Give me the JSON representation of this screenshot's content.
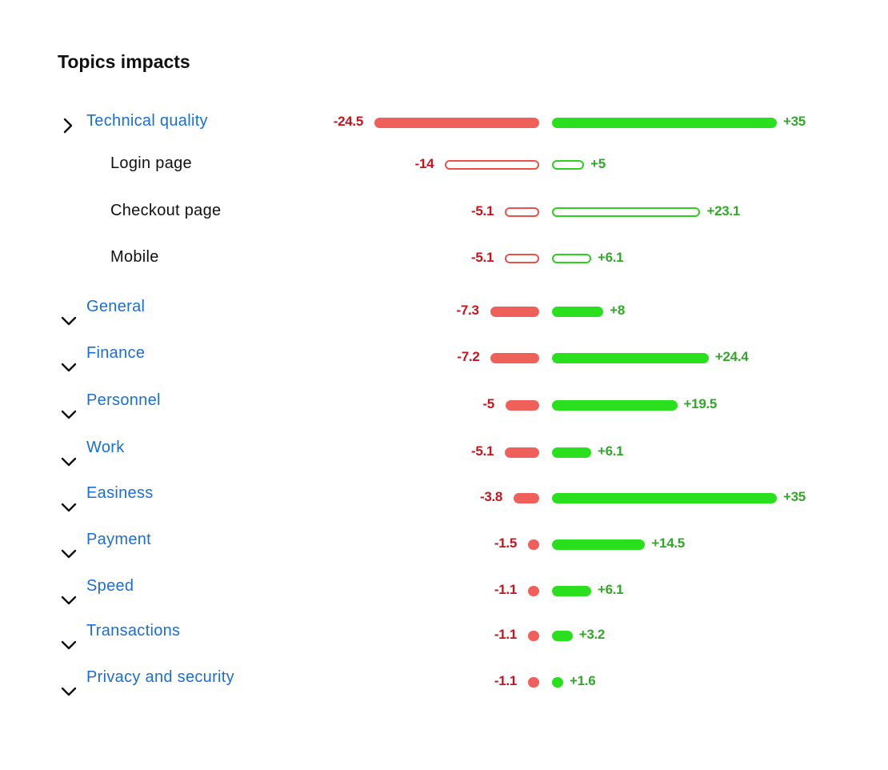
{
  "title": "Topics impacts",
  "colors": {
    "negative_bar": "#f0605a",
    "positive_bar": "#2adf1e",
    "negative_text": "#c8141c",
    "positive_text": "#32a82a",
    "topic_link": "#1a6ed8"
  },
  "chart_data": {
    "type": "bar",
    "orientation": "horizontal-diverging",
    "rows": [
      {
        "label": "Technical quality",
        "level": 0,
        "state": "collapsed-chevron-right",
        "neg": -24.5,
        "pos": 35,
        "neg_label": "-24.5",
        "pos_label": "+35"
      },
      {
        "label": "Login page",
        "level": 1,
        "neg": -14,
        "pos": 5,
        "neg_label": "-14",
        "pos_label": "+5"
      },
      {
        "label": "Checkout page",
        "level": 1,
        "neg": -5.1,
        "pos": 23.1,
        "neg_label": "-5.1",
        "pos_label": "+23.1"
      },
      {
        "label": "Mobile",
        "level": 1,
        "neg": -5.1,
        "pos": 6.1,
        "neg_label": "-5.1",
        "pos_label": "+6.1"
      },
      {
        "label": "General",
        "level": 0,
        "state": "chevron-down",
        "neg": -7.3,
        "pos": 8,
        "neg_label": "-7.3",
        "pos_label": "+8"
      },
      {
        "label": "Finance",
        "level": 0,
        "state": "chevron-down",
        "neg": -7.2,
        "pos": 24.4,
        "neg_label": "-7.2",
        "pos_label": "+24.4"
      },
      {
        "label": "Personnel",
        "level": 0,
        "state": "chevron-down",
        "neg": -5,
        "pos": 19.5,
        "neg_label": "-5",
        "pos_label": "+19.5"
      },
      {
        "label": "Work",
        "level": 0,
        "state": "chevron-down",
        "neg": -5.1,
        "pos": 6.1,
        "neg_label": "-5.1",
        "pos_label": "+6.1"
      },
      {
        "label": "Easiness",
        "level": 0,
        "state": "chevron-down",
        "neg": -3.8,
        "pos": 35,
        "neg_label": "-3.8",
        "pos_label": "+35"
      },
      {
        "label": "Payment",
        "level": 0,
        "state": "chevron-down",
        "neg": -1.5,
        "pos": 14.5,
        "neg_label": "-1.5",
        "pos_label": "+14.5"
      },
      {
        "label": "Speed",
        "level": 0,
        "state": "chevron-down",
        "neg": -1.1,
        "pos": 6.1,
        "neg_label": "-1.1",
        "pos_label": "+6.1"
      },
      {
        "label": "Transactions",
        "level": 0,
        "state": "chevron-down",
        "neg": -1.1,
        "pos": 3.2,
        "neg_label": "-1.1",
        "pos_label": "+3.2"
      },
      {
        "label": "Privacy and security",
        "level": 0,
        "state": "chevron-down",
        "neg": -1.1,
        "pos": 1.6,
        "neg_label": "-1.1",
        "pos_label": "+1.6"
      }
    ]
  }
}
